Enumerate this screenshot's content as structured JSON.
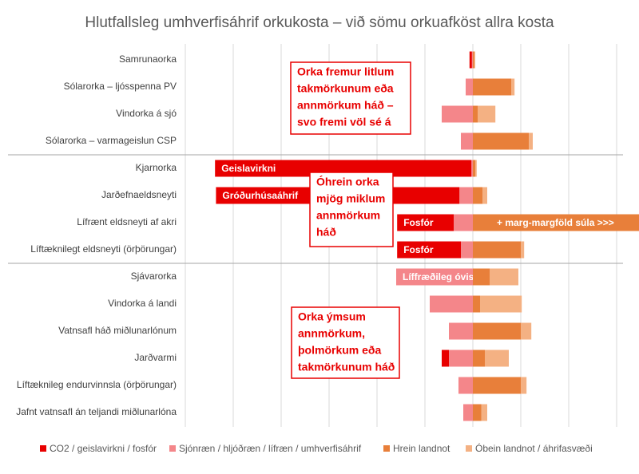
{
  "chart_data": {
    "type": "diverging-bar",
    "title": "Hlutfallsleg umhverfisáhrif orkukosta – við sömu orkuafköst allra kosta",
    "categories": [
      "Samrunaorka",
      "Sólarorka – ljósspenna PV",
      "Vindorka á sjó",
      "Sólarorka – varmageislun CSP",
      "Kjarnorka",
      "Jarðefnaeldsneyti",
      "Lífrænt eldsneyti af akri",
      "Líftæknilegt eldsneyti (örþörungar)",
      "Sjávarorka",
      "Vindorka á landi",
      "Vatnsafl háð miðlunarlónum",
      "Jarðvarmi",
      "Líftæknileg endurvinnsla (örþörungar)",
      "Jafnt vatnsafl án teljandi miðlunarlóna"
    ],
    "series": [
      {
        "name": "CO2 / geislavirkni / fosfór",
        "color": "#e80000",
        "values": [
          -0.05,
          0,
          0,
          0,
          -5.35,
          -5.08,
          -1.18,
          -1.33,
          0,
          0,
          0,
          -0.15,
          0,
          0
        ],
        "bar_labels": [
          null,
          null,
          null,
          null,
          "Geislavirkni",
          "Gróðurhúsaáhrif",
          "Fosfór",
          "Fosfór",
          null,
          null,
          null,
          null,
          null,
          null
        ]
      },
      {
        "name": "Sjónræn / hljóðræn / lífræn / umhverfisáhrif",
        "color": "#f4868a",
        "values": [
          -0.02,
          -0.15,
          -0.65,
          -0.25,
          -0.03,
          -0.28,
          -0.4,
          -0.25,
          -1.6,
          -0.9,
          -0.5,
          -0.5,
          -0.3,
          -0.2
        ],
        "bar_labels": [
          null,
          null,
          null,
          null,
          null,
          null,
          null,
          null,
          "Líffræðileg óvissa",
          null,
          null,
          null,
          null,
          null
        ]
      },
      {
        "name": "Hrein landnot",
        "color": "#e87f3a",
        "values": [
          0.03,
          0.8,
          0.1,
          1.17,
          0.05,
          0.2,
          3.5,
          1.0,
          0.35,
          0.15,
          1.0,
          0.25,
          1.0,
          0.18
        ],
        "bar_labels": [
          null,
          null,
          null,
          null,
          null,
          null,
          "+ marg-margföld súla >>>",
          null,
          null,
          null,
          null,
          null,
          null,
          null
        ]
      },
      {
        "name": "Óbein landnot / áhrifasvæði",
        "color": "#f4b183",
        "values": [
          0.02,
          0.07,
          0.37,
          0.08,
          0.03,
          0.1,
          0,
          0.07,
          0.6,
          0.87,
          0.22,
          0.5,
          0.12,
          0.12
        ],
        "bar_labels": [
          null,
          null,
          null,
          null,
          null,
          null,
          null,
          null,
          null,
          null,
          null,
          null,
          null,
          null
        ]
      }
    ],
    "xlim": [
      -6,
      3
    ],
    "xticks": [
      -6,
      -5,
      -4,
      -3,
      -2,
      -1,
      0,
      1,
      2,
      3
    ],
    "grid": true,
    "annotations": [
      [
        "Orka fremur litlum",
        "takmörkunum eða",
        "annmörkum háð –",
        "svo fremi völ sé á"
      ],
      [
        "Óhrein orka",
        "mjög miklum",
        "annmörkum",
        "háð"
      ],
      [
        "Orka ýmsum",
        "annmörkum,",
        "þolmörkum eða",
        "takmörkunum háð"
      ]
    ]
  }
}
